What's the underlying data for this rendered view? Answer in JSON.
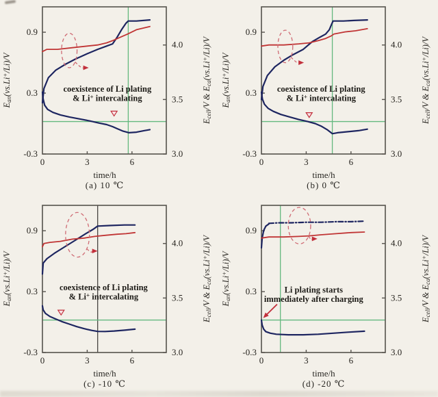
{
  "figure": {
    "background": "#f3f0e9",
    "colors": {
      "cell": "#1d2560",
      "cathode": "#c03434",
      "anode": "#1d2560",
      "guide": "#63b87e",
      "guide_dark": "#454341",
      "frame": "#55524c",
      "tick_text": "#26231e",
      "annotation_text": "#1d1b17",
      "annotation_red": "#c2303c",
      "indicator": "#cf6b74"
    }
  },
  "chart_data": [
    {
      "type": "line",
      "title": "(a) 10 ℃",
      "xlabel": "time/h",
      "ylabel_left": "E_{an}(vs.Li^{+}/Li)/V",
      "ylabel_right": "E_{cell}/V & E_{ca}(vs.Li^{+}/Li)/V",
      "xlim": [
        0,
        8.3
      ],
      "xticks": [
        0,
        3,
        6
      ],
      "ylim_left": [
        -0.3,
        1.15
      ],
      "yticks_left": [
        0.9,
        0.3,
        -0.3
      ],
      "ylim_right": [
        3.0,
        4.35
      ],
      "yticks_right": [
        4.0,
        3.5,
        3.0
      ],
      "series": [
        {
          "name": "E_cell",
          "axis": "right",
          "color_key": "cell",
          "style": "solid",
          "points": [
            [
              0,
              3.47
            ],
            [
              0.1,
              3.6
            ],
            [
              0.4,
              3.7
            ],
            [
              0.9,
              3.77
            ],
            [
              1.5,
              3.82
            ],
            [
              2.2,
              3.87
            ],
            [
              3.0,
              3.92
            ],
            [
              3.7,
              3.96
            ],
            [
              4.3,
              3.99
            ],
            [
              4.7,
              4.01
            ],
            [
              5.0,
              4.07
            ],
            [
              5.3,
              4.14
            ],
            [
              5.6,
              4.2
            ],
            [
              5.75,
              4.22
            ],
            [
              6.3,
              4.22
            ],
            [
              7.2,
              4.23
            ]
          ]
        },
        {
          "name": "E_ca",
          "axis": "right",
          "color_key": "cathode",
          "style": "solid",
          "points": [
            [
              0,
              3.94
            ],
            [
              0.3,
              3.96
            ],
            [
              1.0,
              3.96
            ],
            [
              2.0,
              3.975
            ],
            [
              3.0,
              3.99
            ],
            [
              3.7,
              4.0
            ],
            [
              4.3,
              4.02
            ],
            [
              4.7,
              4.04
            ],
            [
              5.2,
              4.07
            ],
            [
              5.7,
              4.1
            ],
            [
              6.3,
              4.14
            ],
            [
              7.2,
              4.17
            ]
          ]
        },
        {
          "name": "E_an",
          "axis": "left",
          "color_key": "anode",
          "style": "solid",
          "points": [
            [
              0,
              0.31
            ],
            [
              0.05,
              0.24
            ],
            [
              0.15,
              0.18
            ],
            [
              0.35,
              0.14
            ],
            [
              0.7,
              0.11
            ],
            [
              1.2,
              0.085
            ],
            [
              1.8,
              0.065
            ],
            [
              2.5,
              0.045
            ],
            [
              3.2,
              0.025
            ],
            [
              3.8,
              0.005
            ],
            [
              4.3,
              -0.01
            ],
            [
              4.7,
              -0.03
            ],
            [
              5.0,
              -0.05
            ],
            [
              5.4,
              -0.075
            ],
            [
              5.8,
              -0.09
            ],
            [
              6.3,
              -0.085
            ],
            [
              6.8,
              -0.07
            ],
            [
              7.2,
              -0.06
            ]
          ]
        }
      ],
      "guides": {
        "vline": {
          "t": 5.75,
          "color_key": "guide"
        },
        "hline": {
          "v": 0.02,
          "color_key": "guide"
        }
      },
      "annotation": {
        "lines": [
          "coexistence of Li plating",
          "& Li^{+} intercalating"
        ],
        "t": 4.35,
        "v": 0.315
      },
      "marker_triangle": {
        "t": 4.8,
        "v": 0.075
      },
      "axis_indicator": {
        "ellipse": {
          "t": 1.8,
          "v": 0.72,
          "rt": 0.52,
          "rv": 0.17
        },
        "arrow": {
          "t": 3.1,
          "v": 0.55
        }
      }
    },
    {
      "type": "line",
      "title": "(b) 0 ℃",
      "xlabel": "time/h",
      "ylabel_left": "E_{an}(vs.Li^{+}/Li)/V",
      "ylabel_right": "E_{cell}/V & E_{ca}(vs.Li^{+}/Li)/V",
      "xlim": [
        0,
        8.3
      ],
      "xticks": [
        0,
        3,
        6
      ],
      "ylim_left": [
        -0.3,
        1.15
      ],
      "yticks_left": [
        0.9,
        0.3,
        -0.3
      ],
      "ylim_right": [
        3.0,
        4.35
      ],
      "yticks_right": [
        4.0,
        3.5,
        3.0
      ],
      "series": [
        {
          "name": "E_cell",
          "axis": "right",
          "color_key": "cell",
          "style": "solid",
          "points": [
            [
              0,
              3.5
            ],
            [
              0.1,
              3.62
            ],
            [
              0.4,
              3.72
            ],
            [
              0.9,
              3.8
            ],
            [
              1.5,
              3.86
            ],
            [
              2.1,
              3.91
            ],
            [
              2.8,
              3.96
            ],
            [
              3.4,
              4.03
            ],
            [
              3.9,
              4.07
            ],
            [
              4.3,
              4.1
            ],
            [
              4.55,
              4.14
            ],
            [
              4.7,
              4.19
            ],
            [
              4.8,
              4.22
            ],
            [
              5.5,
              4.22
            ],
            [
              6.2,
              4.225
            ],
            [
              7.1,
              4.23
            ]
          ]
        },
        {
          "name": "E_ca",
          "axis": "right",
          "color_key": "cathode",
          "style": "solid",
          "points": [
            [
              0,
              3.99
            ],
            [
              0.5,
              4.0
            ],
            [
              1.5,
              4.0
            ],
            [
              2.5,
              4.01
            ],
            [
              3.2,
              4.02
            ],
            [
              3.8,
              4.04
            ],
            [
              4.3,
              4.06
            ],
            [
              4.7,
              4.085
            ],
            [
              4.85,
              4.1
            ],
            [
              5.6,
              4.12
            ],
            [
              6.3,
              4.13
            ],
            [
              7.1,
              4.15
            ]
          ]
        },
        {
          "name": "E_an",
          "axis": "left",
          "color_key": "anode",
          "style": "solid",
          "points": [
            [
              0,
              0.31
            ],
            [
              0.07,
              0.24
            ],
            [
              0.2,
              0.19
            ],
            [
              0.45,
              0.15
            ],
            [
              0.8,
              0.12
            ],
            [
              1.3,
              0.09
            ],
            [
              1.9,
              0.065
            ],
            [
              2.5,
              0.04
            ],
            [
              3.1,
              0.02
            ],
            [
              3.6,
              0.0
            ],
            [
              4.0,
              -0.025
            ],
            [
              4.4,
              -0.06
            ],
            [
              4.75,
              -0.1
            ],
            [
              5.1,
              -0.09
            ],
            [
              5.8,
              -0.08
            ],
            [
              6.5,
              -0.07
            ],
            [
              7.1,
              -0.055
            ]
          ]
        }
      ],
      "guides": {
        "vline": {
          "t": 4.75,
          "color_key": "guide"
        },
        "hline": {
          "v": 0.02,
          "color_key": "guide"
        }
      },
      "annotation": {
        "lines": [
          "coexistence of Li plating",
          "& Li^{+} intercalating"
        ],
        "t": 4.0,
        "v": 0.315
      },
      "marker_triangle": {
        "t": 3.2,
        "v": 0.06
      },
      "axis_indicator": {
        "ellipse": {
          "t": 1.6,
          "v": 0.76,
          "rt": 0.5,
          "rv": 0.16
        },
        "arrow": {
          "t": 2.85,
          "v": 0.6
        }
      }
    },
    {
      "type": "line",
      "title": "(c) -10 ℃",
      "xlabel": "time/h",
      "ylabel_left": "E_{an}(vs.Li^{+}/Li)/V",
      "ylabel_right": "E_{cell}/V & E_{ca}(vs.Li^{+}/Li)/V",
      "xlim": [
        0,
        8.3
      ],
      "xticks": [
        0,
        3,
        6
      ],
      "ylim_left": [
        -0.3,
        1.15
      ],
      "yticks_left": [
        0.9,
        0.3,
        -0.3
      ],
      "ylim_right": [
        3.0,
        4.35
      ],
      "yticks_right": [
        4.0,
        3.5,
        3.0
      ],
      "series": [
        {
          "name": "E_cell",
          "axis": "right",
          "color_key": "cell",
          "style": "solid",
          "points": [
            [
              0,
              3.72
            ],
            [
              0.05,
              3.82
            ],
            [
              0.3,
              3.86
            ],
            [
              0.8,
              3.91
            ],
            [
              1.5,
              3.97
            ],
            [
              2.2,
              4.03
            ],
            [
              2.9,
              4.09
            ],
            [
              3.4,
              4.13
            ],
            [
              3.7,
              4.16
            ],
            [
              4.5,
              4.165
            ],
            [
              5.5,
              4.17
            ],
            [
              6.2,
              4.17
            ]
          ]
        },
        {
          "name": "E_ca",
          "axis": "right",
          "color_key": "cathode",
          "style": "solid",
          "points": [
            [
              0,
              3.97
            ],
            [
              0.1,
              4.0
            ],
            [
              0.5,
              4.01
            ],
            [
              1.2,
              4.02
            ],
            [
              2.0,
              4.04
            ],
            [
              2.8,
              4.05
            ],
            [
              3.5,
              4.065
            ],
            [
              4.2,
              4.075
            ],
            [
              5.0,
              4.085
            ],
            [
              5.6,
              4.09
            ],
            [
              6.2,
              4.1
            ]
          ]
        },
        {
          "name": "E_an",
          "axis": "left",
          "color_key": "anode",
          "style": "solid",
          "points": [
            [
              0,
              0.16
            ],
            [
              0.05,
              0.12
            ],
            [
              0.2,
              0.085
            ],
            [
              0.5,
              0.055
            ],
            [
              0.9,
              0.03
            ],
            [
              1.3,
              0.005
            ],
            [
              1.8,
              -0.02
            ],
            [
              2.3,
              -0.045
            ],
            [
              2.8,
              -0.065
            ],
            [
              3.3,
              -0.082
            ],
            [
              3.7,
              -0.092
            ],
            [
              4.2,
              -0.093
            ],
            [
              4.8,
              -0.088
            ],
            [
              5.5,
              -0.08
            ],
            [
              6.2,
              -0.07
            ]
          ]
        }
      ],
      "guides": {
        "vline": {
          "t": 3.7,
          "color_key": "guide_dark"
        },
        "hline": {
          "v": 0.02,
          "color_key": "guide"
        }
      },
      "annotation": {
        "lines": [
          "coexistence of Li plating",
          "& Li^{+} intercalating"
        ],
        "t": 4.1,
        "v": 0.315
      },
      "marker_triangle": {
        "t": 1.25,
        "v": 0.07
      },
      "axis_indicator": {
        "ellipse": {
          "t": 2.35,
          "v": 0.86,
          "rt": 0.8,
          "rv": 0.22
        },
        "arrow": {
          "t": 3.7,
          "v": 0.7
        }
      }
    },
    {
      "type": "line",
      "title": "(d) -20 ℃",
      "xlabel": "time/h",
      "ylabel_left": "E_{an}(vs.Li^{+}/Li)/V",
      "ylabel_right": "E_{cell}/V & E_{ca}(vs.Li^{+}/Li)/V",
      "xlim": [
        0,
        8.3
      ],
      "xticks": [
        0,
        3,
        6
      ],
      "ylim_left": [
        -0.3,
        1.15
      ],
      "yticks_left": [
        0.9,
        0.3,
        -0.3
      ],
      "ylim_right": [
        3.0,
        4.35
      ],
      "yticks_right": [
        4.0,
        3.5,
        3.0
      ],
      "series": [
        {
          "name": "E_cell onset",
          "axis": "right",
          "color_key": "cell",
          "style": "solid",
          "points": [
            [
              0,
              3.96
            ],
            [
              0.05,
              4.05
            ],
            [
              0.15,
              4.12
            ],
            [
              0.3,
              4.16
            ],
            [
              0.5,
              4.18
            ]
          ]
        },
        {
          "name": "E_cell",
          "axis": "right",
          "color_key": "cell",
          "style": "dashdot",
          "points": [
            [
              0.5,
              4.185
            ],
            [
              1.2,
              4.19
            ],
            [
              2.0,
              4.19
            ],
            [
              3.0,
              4.195
            ],
            [
              4.0,
              4.195
            ],
            [
              5.0,
              4.2
            ],
            [
              6.0,
              4.2
            ],
            [
              6.9,
              4.205
            ]
          ]
        },
        {
          "name": "E_ca",
          "axis": "right",
          "color_key": "cathode",
          "style": "solid",
          "points": [
            [
              0,
              4.05
            ],
            [
              0.5,
              4.06
            ],
            [
              1.5,
              4.06
            ],
            [
              2.5,
              4.065
            ],
            [
              3.2,
              4.07
            ],
            [
              4.0,
              4.08
            ],
            [
              5.0,
              4.09
            ],
            [
              6.0,
              4.1
            ],
            [
              6.9,
              4.105
            ]
          ]
        },
        {
          "name": "E_an",
          "axis": "left",
          "color_key": "anode",
          "style": "solid",
          "points": [
            [
              0,
              0.02
            ],
            [
              0.05,
              -0.03
            ],
            [
              0.15,
              -0.07
            ],
            [
              0.3,
              -0.095
            ],
            [
              0.6,
              -0.11
            ],
            [
              1.0,
              -0.12
            ],
            [
              1.8,
              -0.125
            ],
            [
              2.8,
              -0.125
            ],
            [
              3.8,
              -0.12
            ],
            [
              4.8,
              -0.11
            ],
            [
              5.8,
              -0.1
            ],
            [
              6.9,
              -0.09
            ]
          ]
        }
      ],
      "guides": {
        "vline": {
          "t": 1.27,
          "color_key": "guide"
        },
        "hline": {
          "v": 0.02,
          "color_key": "guide"
        }
      },
      "annotation": {
        "lines": [
          "Li plating  starts",
          "immediately after charging"
        ],
        "t": 3.5,
        "v": 0.29,
        "arrow": {
          "from": [
            1.05,
            0.175
          ],
          "to": [
            0.12,
            0.04
          ]
        }
      },
      "marker_triangle": null,
      "axis_indicator": {
        "ellipse": {
          "t": 2.55,
          "v": 0.95,
          "rt": 0.75,
          "rv": 0.18
        },
        "arrow": {
          "t": 3.75,
          "v": 0.82
        }
      }
    }
  ]
}
